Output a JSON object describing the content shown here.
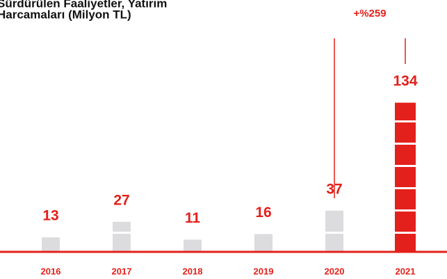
{
  "chart_data": {
    "type": "bar",
    "title": "Sürdürülen Faaliyetler, Yatırım Harcamaları (Milyon TL)",
    "categories": [
      "2016",
      "2017",
      "2018",
      "2019",
      "2020",
      "2021"
    ],
    "values": [
      13,
      27,
      11,
      16,
      37,
      134
    ],
    "colors": [
      "#dcdcde",
      "#dcdcde",
      "#dcdcde",
      "#dcdcde",
      "#dcdcde",
      "#e3201b"
    ],
    "label_color": "#e3201b",
    "ylim": [
      0,
      140
    ],
    "annotation": "+%259"
  }
}
